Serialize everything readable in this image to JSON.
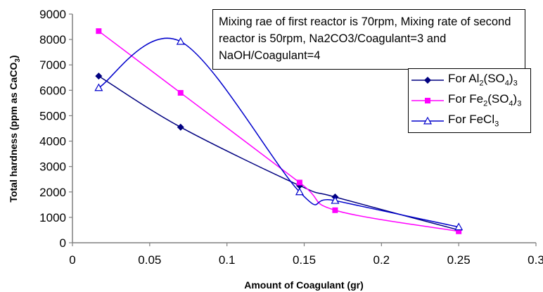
{
  "chart_data": {
    "type": "line",
    "xlabel": "Amount of Coagulant (gr)",
    "ylabel_parts": [
      "Total hardness (ppm as CaCO",
      "3",
      ")"
    ],
    "xlim": [
      0,
      0.3
    ],
    "ylim": [
      0,
      9000
    ],
    "x_ticks": [
      "0",
      "0.05",
      "0.1",
      "0.15",
      "0.2",
      "0.25",
      "0.3"
    ],
    "x_tick_values": [
      0,
      0.05,
      0.1,
      0.15,
      0.2,
      0.25,
      0.3
    ],
    "y_ticks": [
      "0",
      "1000",
      "2000",
      "3000",
      "4000",
      "5000",
      "6000",
      "7000",
      "8000",
      "9000"
    ],
    "y_tick_values": [
      0,
      1000,
      2000,
      3000,
      4000,
      5000,
      6000,
      7000,
      8000,
      9000
    ],
    "grid": false,
    "legend_position": "right",
    "annotation": "Mixing rae of first reactor is 70rpm, Mixing rate of second reactor is 50rpm, Na2CO3/Coagulant=3 and NaOH/Coagulant=4",
    "series": [
      {
        "key": "al",
        "legend_parts": [
          "For Al",
          "2",
          "(SO",
          "4",
          ")",
          "3"
        ],
        "color": "#000080",
        "marker": "diamond",
        "x": [
          0.017,
          0.07,
          0.147,
          0.17,
          0.25
        ],
        "y": [
          6560,
          4550,
          2250,
          1800,
          500
        ]
      },
      {
        "key": "fe2so4",
        "legend_parts": [
          "For Fe",
          "2",
          "(SO",
          "4",
          ")",
          "3"
        ],
        "color": "#ff00ff",
        "marker": "square",
        "x": [
          0.017,
          0.07,
          0.147,
          0.17,
          0.25
        ],
        "y": [
          8330,
          5900,
          2370,
          1280,
          450
        ]
      },
      {
        "key": "fecl3",
        "legend_parts": [
          "For FeCl",
          "3"
        ],
        "color": "#0000cc",
        "marker": "triangle",
        "x": [
          0.017,
          0.07,
          0.147,
          0.17,
          0.25
        ],
        "y": [
          6100,
          7920,
          2000,
          1660,
          620
        ]
      }
    ]
  }
}
